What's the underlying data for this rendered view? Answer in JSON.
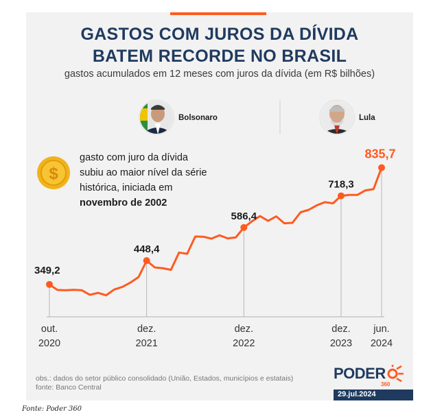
{
  "page": {
    "title_line1": "GASTOS COM JUROS DA DÍVIDA",
    "title_line2": "BATEM RECORDE NO BRASIL",
    "subtitle": "gastos acumulados em 12 meses com juros da dívida (em R$ bilhões)",
    "callout_line1": "gasto com juro da dívida",
    "callout_line2": "subiu ao maior nível da série",
    "callout_line3": "histórica, iniciada em",
    "callout_line4": "novembro de 2002",
    "president_left": "Bolsonaro",
    "president_right": "Lula",
    "note1": "obs.: dados do setor público consolidado (União, Estados, municípios e estatais)",
    "note2": "fonte: Banco Central",
    "brand": "PODER",
    "brand_num": "360",
    "date": "29.jul.2024",
    "source": "Fonte: Poder 360"
  },
  "colors": {
    "line": "#ff5a1f",
    "navy": "#1f3a5f",
    "highlight": "#ff5a1f"
  },
  "chart_data": {
    "type": "line",
    "title": "GASTOS COM JUROS DA DÍVIDA BATEM RECORDE NO BRASIL",
    "ylabel": "R$ bilhões",
    "xlabel": "",
    "ylim": [
      220,
      860
    ],
    "series": [
      {
        "name": "gastos acumulados em 12 meses com juros da dívida",
        "values": [
          349.2,
          326,
          325,
          327,
          325,
          306,
          314,
          304,
          328,
          339,
          357,
          380,
          448.4,
          420,
          417,
          410,
          482,
          477,
          549,
          548,
          540,
          554,
          541,
          545,
          586.4,
          612,
          634,
          614,
          633,
          604,
          606,
          650,
          660,
          679,
          692,
          687,
          718.3,
          722,
          722,
          741,
          746,
          835.7
        ]
      }
    ],
    "labeled_points": [
      {
        "index": 0,
        "label": "349,2"
      },
      {
        "index": 12,
        "label": "448,4"
      },
      {
        "index": 24,
        "label": "586,4"
      },
      {
        "index": 36,
        "label": "718,3"
      },
      {
        "index": 41,
        "label": "835,7",
        "highlight": true
      }
    ],
    "ticks": [
      {
        "index": 0,
        "line1": "out.",
        "line2": "2020"
      },
      {
        "index": 12,
        "line1": "dez.",
        "line2": "2021"
      },
      {
        "index": 24,
        "line1": "dez.",
        "line2": "2022"
      },
      {
        "index": 36,
        "line1": "dez.",
        "line2": "2023"
      },
      {
        "index": 41,
        "line1": "jun.",
        "line2": "2024"
      }
    ]
  }
}
